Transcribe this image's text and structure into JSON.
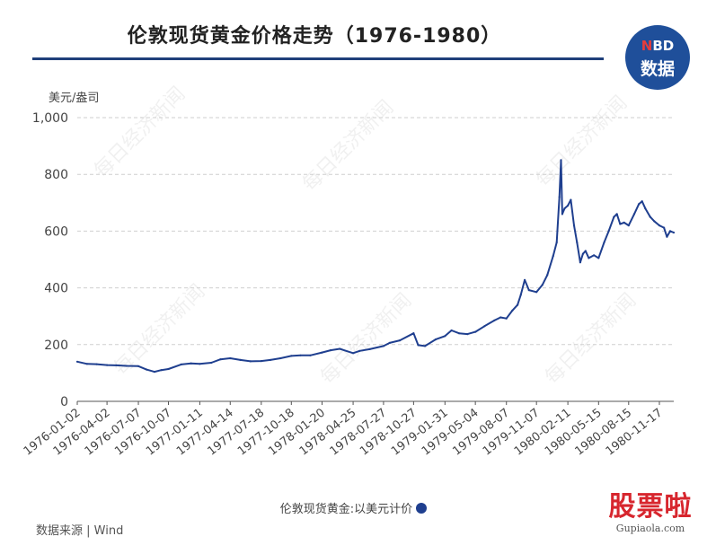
{
  "header": {
    "title": "伦敦现货黄金价格走势（1976-1980）"
  },
  "logo": {
    "top_n": "N",
    "top_rest": "BD",
    "bottom": "数据"
  },
  "watermark": "每日经济新闻",
  "legend_label": "伦敦现货黄金:以美元计价",
  "source": "数据来源 | Wind",
  "brand": {
    "main": "股票啦",
    "site": "Gupiaola.com"
  },
  "colors": {
    "line": "#1f3f8f",
    "title_rule": "#1f3f7a",
    "logo_bg": "#1f4f9a",
    "brand_red": "#d7262e"
  },
  "chart_data": {
    "type": "line",
    "ylabel": "美元/盎司",
    "ylim": [
      0,
      1000
    ],
    "y_ticks": [
      0,
      200,
      400,
      600,
      800,
      1000
    ],
    "y_tick_labels": [
      "0",
      "200",
      "400",
      "600",
      "800",
      "1,000"
    ],
    "grid": true,
    "x_tick_labels": [
      "1976-01-02",
      "1976-04-02",
      "1976-07-07",
      "1976-10-07",
      "1977-01-11",
      "1977-04-14",
      "1977-07-18",
      "1977-10-18",
      "1978-01-20",
      "1978-04-25",
      "1978-07-27",
      "1978-10-27",
      "1979-01-31",
      "1979-05-04",
      "1979-08-07",
      "1979-11-07",
      "1980-02-11",
      "1980-05-15",
      "1980-08-15",
      "1980-11-17"
    ],
    "x_range": [
      "1976-01-02",
      "1980-12-31"
    ],
    "series": [
      {
        "name": "伦敦现货黄金:以美元计价",
        "points": [
          [
            "1976-01-02",
            140
          ],
          [
            "1976-02-01",
            132
          ],
          [
            "1976-03-01",
            131
          ],
          [
            "1976-04-02",
            128
          ],
          [
            "1976-05-01",
            127
          ],
          [
            "1976-06-01",
            125
          ],
          [
            "1976-07-07",
            124
          ],
          [
            "1976-08-01",
            112
          ],
          [
            "1976-08-25",
            104
          ],
          [
            "1976-09-15",
            110
          ],
          [
            "1976-10-07",
            114
          ],
          [
            "1976-11-15",
            130
          ],
          [
            "1976-12-15",
            134
          ],
          [
            "1977-01-11",
            132
          ],
          [
            "1977-02-15",
            136
          ],
          [
            "1977-03-15",
            148
          ],
          [
            "1977-04-14",
            152
          ],
          [
            "1977-05-15",
            146
          ],
          [
            "1977-06-15",
            141
          ],
          [
            "1977-07-18",
            142
          ],
          [
            "1977-08-15",
            146
          ],
          [
            "1977-09-15",
            152
          ],
          [
            "1977-10-18",
            160
          ],
          [
            "1977-11-15",
            162
          ],
          [
            "1977-12-15",
            162
          ],
          [
            "1978-01-20",
            172
          ],
          [
            "1978-02-15",
            180
          ],
          [
            "1978-03-15",
            185
          ],
          [
            "1978-04-25",
            170
          ],
          [
            "1978-05-15",
            178
          ],
          [
            "1978-06-15",
            184
          ],
          [
            "1978-07-27",
            195
          ],
          [
            "1978-08-15",
            206
          ],
          [
            "1978-09-15",
            215
          ],
          [
            "1978-10-27",
            240
          ],
          [
            "1978-11-10",
            198
          ],
          [
            "1978-12-01",
            195
          ],
          [
            "1979-01-02",
            218
          ],
          [
            "1979-01-31",
            230
          ],
          [
            "1979-02-20",
            250
          ],
          [
            "1979-03-15",
            240
          ],
          [
            "1979-04-10",
            237
          ],
          [
            "1979-05-04",
            245
          ],
          [
            "1979-06-01",
            265
          ],
          [
            "1979-07-01",
            285
          ],
          [
            "1979-07-20",
            296
          ],
          [
            "1979-08-07",
            292
          ],
          [
            "1979-08-25",
            320
          ],
          [
            "1979-09-10",
            340
          ],
          [
            "1979-09-20",
            375
          ],
          [
            "1979-10-02",
            428
          ],
          [
            "1979-10-15",
            392
          ],
          [
            "1979-11-07",
            385
          ],
          [
            "1979-11-25",
            410
          ],
          [
            "1979-12-10",
            445
          ],
          [
            "1979-12-28",
            512
          ],
          [
            "1980-01-08",
            560
          ],
          [
            "1980-01-16",
            720
          ],
          [
            "1980-01-21",
            850
          ],
          [
            "1980-01-25",
            660
          ],
          [
            "1980-02-01",
            680
          ],
          [
            "1980-02-11",
            690
          ],
          [
            "1980-02-20",
            710
          ],
          [
            "1980-03-01",
            620
          ],
          [
            "1980-03-10",
            560
          ],
          [
            "1980-03-20",
            490
          ],
          [
            "1980-03-28",
            520
          ],
          [
            "1980-04-05",
            530
          ],
          [
            "1980-04-15",
            505
          ],
          [
            "1980-05-01",
            515
          ],
          [
            "1980-05-15",
            505
          ],
          [
            "1980-06-01",
            560
          ],
          [
            "1980-06-15",
            600
          ],
          [
            "1980-07-01",
            650
          ],
          [
            "1980-07-10",
            660
          ],
          [
            "1980-07-20",
            625
          ],
          [
            "1980-08-01",
            630
          ],
          [
            "1980-08-15",
            620
          ],
          [
            "1980-09-01",
            660
          ],
          [
            "1980-09-15",
            695
          ],
          [
            "1980-09-25",
            705
          ],
          [
            "1980-10-05",
            680
          ],
          [
            "1980-10-20",
            650
          ],
          [
            "1980-11-01",
            635
          ],
          [
            "1980-11-17",
            620
          ],
          [
            "1980-12-01",
            612
          ],
          [
            "1980-12-10",
            580
          ],
          [
            "1980-12-20",
            600
          ],
          [
            "1980-12-31",
            595
          ]
        ]
      }
    ]
  }
}
